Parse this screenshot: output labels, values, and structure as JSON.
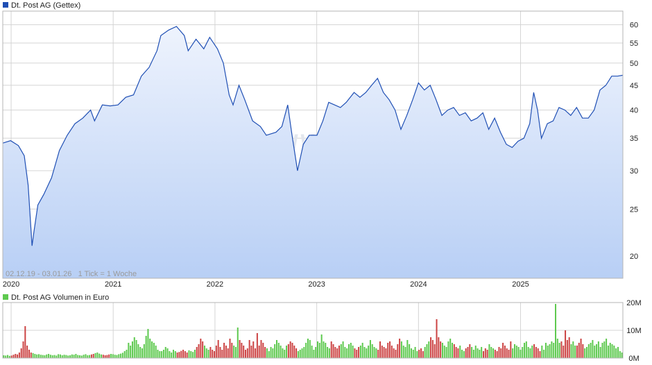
{
  "colors": {
    "line": "#1f4fb4",
    "area_top": "#eef3fd",
    "area_bottom": "#b8cff5",
    "grid": "#d4d4d4",
    "frame": "#b5b5b5",
    "vol_up": "#5ec94f",
    "vol_down": "#cc4444",
    "legend_price": "#1f4fb4",
    "legend_volume": "#5ec94f",
    "watermark": "#e3e7ee"
  },
  "chart_data": [
    {
      "type": "line",
      "title": "Dt. Post AG (Gettex)",
      "subtitle": "02.12.19 - 03.01.26   1 Tick = 1 Woche",
      "watermark": "ARIVA.DE",
      "scale": "log",
      "ylim": [
        18,
        64
      ],
      "grid": true,
      "y_ticks": [
        20,
        25,
        30,
        35,
        40,
        45,
        50,
        55,
        60
      ],
      "x_ticks": [
        "2020",
        "2021",
        "2022",
        "2023",
        "2024",
        "2025"
      ],
      "x_tick_dates": [
        "2020-01-01",
        "2021-01-01",
        "2022-01-01",
        "2023-01-01",
        "2024-01-01",
        "2025-01-01"
      ],
      "x_range": [
        "2019-12-02",
        "2026-01-03"
      ],
      "points": [
        [
          "2019-12-02",
          34.2
        ],
        [
          "2019-12-30",
          34.6
        ],
        [
          "2020-01-27",
          33.8
        ],
        [
          "2020-02-17",
          32.2
        ],
        [
          "2020-03-02",
          28.0
        ],
        [
          "2020-03-16",
          21.0
        ],
        [
          "2020-03-23",
          22.5
        ],
        [
          "2020-04-06",
          25.5
        ],
        [
          "2020-04-27",
          26.8
        ],
        [
          "2020-05-25",
          29.0
        ],
        [
          "2020-06-22",
          33.0
        ],
        [
          "2020-07-20",
          35.5
        ],
        [
          "2020-08-17",
          37.5
        ],
        [
          "2020-09-14",
          38.5
        ],
        [
          "2020-10-12",
          40.0
        ],
        [
          "2020-10-26",
          38.0
        ],
        [
          "2020-11-23",
          41.0
        ],
        [
          "2020-12-21",
          40.8
        ],
        [
          "2021-01-18",
          41.0
        ],
        [
          "2021-02-15",
          42.5
        ],
        [
          "2021-03-15",
          43.0
        ],
        [
          "2021-04-12",
          47.0
        ],
        [
          "2021-05-10",
          49.0
        ],
        [
          "2021-06-07",
          53.0
        ],
        [
          "2021-06-21",
          57.0
        ],
        [
          "2021-07-19",
          58.5
        ],
        [
          "2021-08-16",
          59.5
        ],
        [
          "2021-09-13",
          57.0
        ],
        [
          "2021-09-27",
          53.0
        ],
        [
          "2021-10-25",
          56.0
        ],
        [
          "2021-11-22",
          53.5
        ],
        [
          "2021-12-13",
          56.5
        ],
        [
          "2022-01-10",
          53.5
        ],
        [
          "2022-01-31",
          50.0
        ],
        [
          "2022-02-21",
          43.0
        ],
        [
          "2022-03-07",
          41.0
        ],
        [
          "2022-03-28",
          45.0
        ],
        [
          "2022-04-18",
          42.0
        ],
        [
          "2022-05-16",
          38.0
        ],
        [
          "2022-06-13",
          37.0
        ],
        [
          "2022-07-04",
          35.5
        ],
        [
          "2022-08-08",
          36.0
        ],
        [
          "2022-08-29",
          37.0
        ],
        [
          "2022-09-19",
          41.0
        ],
        [
          "2022-10-03",
          36.0
        ],
        [
          "2022-10-24",
          30.0
        ],
        [
          "2022-11-14",
          34.0
        ],
        [
          "2022-12-05",
          35.5
        ],
        [
          "2023-01-02",
          35.5
        ],
        [
          "2023-01-23",
          38.0
        ],
        [
          "2023-02-13",
          41.5
        ],
        [
          "2023-03-06",
          41.0
        ],
        [
          "2023-03-27",
          40.5
        ],
        [
          "2023-04-17",
          41.5
        ],
        [
          "2023-05-15",
          43.5
        ],
        [
          "2023-06-05",
          42.5
        ],
        [
          "2023-06-26",
          43.5
        ],
        [
          "2023-07-17",
          45.0
        ],
        [
          "2023-08-07",
          46.5
        ],
        [
          "2023-08-28",
          43.5
        ],
        [
          "2023-09-18",
          42.0
        ],
        [
          "2023-10-09",
          40.0
        ],
        [
          "2023-10-30",
          36.5
        ],
        [
          "2023-11-20",
          39.0
        ],
        [
          "2023-12-11",
          42.0
        ],
        [
          "2024-01-01",
          45.5
        ],
        [
          "2024-01-22",
          44.0
        ],
        [
          "2024-02-12",
          45.0
        ],
        [
          "2024-03-04",
          42.0
        ],
        [
          "2024-03-25",
          39.0
        ],
        [
          "2024-04-15",
          40.0
        ],
        [
          "2024-05-06",
          40.5
        ],
        [
          "2024-05-27",
          39.0
        ],
        [
          "2024-06-17",
          39.5
        ],
        [
          "2024-07-08",
          38.0
        ],
        [
          "2024-07-29",
          38.5
        ],
        [
          "2024-08-19",
          39.5
        ],
        [
          "2024-09-09",
          36.5
        ],
        [
          "2024-09-30",
          38.5
        ],
        [
          "2024-10-21",
          36.0
        ],
        [
          "2024-11-11",
          34.0
        ],
        [
          "2024-12-02",
          33.5
        ],
        [
          "2024-12-23",
          34.5
        ],
        [
          "2025-01-13",
          35.0
        ],
        [
          "2025-02-03",
          37.5
        ],
        [
          "2025-02-17",
          43.5
        ],
        [
          "2025-03-03",
          40.0
        ],
        [
          "2025-03-17",
          35.0
        ],
        [
          "2025-04-07",
          37.5
        ],
        [
          "2025-04-28",
          38.0
        ],
        [
          "2025-05-19",
          40.5
        ],
        [
          "2025-06-09",
          40.0
        ],
        [
          "2025-06-30",
          39.0
        ],
        [
          "2025-07-21",
          40.5
        ],
        [
          "2025-08-11",
          38.5
        ],
        [
          "2025-09-01",
          38.5
        ],
        [
          "2025-09-22",
          40.0
        ],
        [
          "2025-10-13",
          44.0
        ],
        [
          "2025-11-03",
          45.0
        ],
        [
          "2025-11-24",
          47.0
        ],
        [
          "2025-12-15",
          47.0
        ],
        [
          "2026-01-03",
          47.2
        ]
      ]
    },
    {
      "type": "bar",
      "title": "Dt. Post AG Volumen in Euro",
      "unit": "Euro",
      "ylim": [
        0,
        20000000
      ],
      "y_ticks": [
        0,
        10000000,
        20000000
      ],
      "y_tick_labels": [
        "0M",
        "10M",
        "20M"
      ],
      "x_range": [
        "2019-12-02",
        "2026-01-03"
      ],
      "x_ticks": [
        "2020",
        "2021",
        "2022",
        "2023",
        "2024",
        "2025"
      ],
      "values_millions": [
        1.0,
        0.9,
        1.1,
        0.8,
        0.9,
        1.2,
        1.5,
        1.3,
        2.0,
        3.5,
        6.0,
        11.5,
        4.5,
        3.0,
        2.0,
        1.8,
        1.5,
        1.3,
        1.4,
        1.2,
        1.1,
        1.0,
        1.3,
        1.5,
        1.2,
        1.0,
        1.1,
        0.9,
        1.4,
        1.3,
        1.0,
        1.2,
        1.1,
        0.9,
        1.0,
        1.3,
        1.2,
        1.5,
        1.1,
        1.0,
        0.9,
        1.2,
        1.4,
        1.0,
        1.1,
        1.3,
        1.5,
        1.8,
        2.0,
        1.6,
        1.3,
        1.2,
        1.0,
        1.1,
        1.3,
        1.5,
        1.4,
        1.2,
        1.1,
        1.4,
        1.6,
        1.9,
        2.5,
        3.0,
        5.5,
        4.5,
        6.0,
        7.5,
        6.5,
        5.0,
        4.0,
        3.5,
        5.0,
        8.0,
        10.5,
        7.0,
        6.0,
        5.5,
        4.5,
        3.0,
        2.5,
        2.5,
        3.0,
        4.0,
        3.5,
        2.5,
        2.0,
        3.0,
        2.5,
        2.0,
        2.2,
        2.6,
        3.0,
        2.5,
        2.0,
        2.8,
        2.5,
        2.2,
        3.0,
        4.0,
        5.0,
        7.0,
        6.0,
        4.5,
        3.5,
        3.0,
        4.0,
        3.0,
        2.5,
        4.5,
        6.5,
        4.0,
        3.0,
        5.5,
        4.5,
        3.5,
        7.0,
        5.5,
        4.5,
        4.0,
        11.0,
        6.5,
        5.5,
        4.5,
        3.0,
        3.5,
        6.5,
        4.5,
        6.0,
        3.5,
        9.0,
        4.5,
        6.5,
        5.5,
        4.0,
        3.5,
        2.5,
        4.0,
        3.5,
        5.0,
        6.5,
        5.5,
        4.5,
        3.5,
        3.0,
        4.5,
        5.0,
        6.0,
        5.5,
        4.5,
        3.5,
        2.5,
        3.0,
        3.5,
        4.0,
        5.5,
        7.0,
        6.5,
        4.5,
        3.0,
        4.0,
        6.0,
        5.5,
        8.5,
        6.0,
        5.5,
        4.0,
        3.5,
        6.0,
        5.0,
        4.0,
        3.5,
        4.5,
        5.0,
        6.0,
        4.0,
        3.5,
        5.0,
        5.5,
        4.5,
        3.5,
        3.0,
        4.0,
        4.5,
        5.5,
        4.0,
        3.5,
        4.5,
        6.5,
        5.0,
        4.0,
        3.5,
        3.0,
        6.0,
        4.5,
        4.0,
        3.5,
        5.5,
        6.0,
        4.5,
        3.5,
        3.0,
        5.0,
        7.0,
        6.0,
        4.5,
        4.0,
        6.5,
        5.0,
        3.5,
        3.0,
        4.0,
        2.5,
        3.0,
        3.5,
        2.5,
        4.0,
        5.0,
        6.0,
        7.5,
        6.5,
        5.0,
        14.0,
        7.5,
        6.0,
        5.5,
        4.5,
        4.0,
        6.0,
        7.0,
        5.5,
        5.0,
        4.0,
        3.5,
        4.5,
        3.0,
        2.5,
        3.5,
        4.0,
        5.0,
        4.0,
        3.0,
        4.5,
        3.5,
        3.0,
        4.0,
        2.5,
        3.5,
        3.0,
        5.0,
        4.0,
        3.5,
        3.0,
        2.5,
        4.0,
        3.5,
        5.5,
        4.5,
        3.5,
        3.0,
        6.0,
        3.5,
        5.0,
        4.5,
        4.0,
        3.0,
        4.0,
        5.5,
        6.0,
        4.0,
        3.5,
        4.5,
        5.0,
        4.0,
        3.5,
        2.5,
        4.5,
        3.0,
        5.5,
        4.5,
        5.0,
        6.0,
        5.5,
        19.5,
        7.0,
        5.5,
        6.0,
        4.5,
        10.0,
        6.5,
        7.5,
        5.0,
        6.0,
        4.5,
        4.5,
        5.5,
        7.0,
        5.0,
        3.5,
        4.0,
        5.0,
        5.5,
        6.5,
        4.5,
        5.0,
        6.0,
        4.0,
        5.5,
        6.0,
        7.0,
        4.5,
        5.5,
        5.0,
        4.5,
        3.5,
        4.0,
        2.5,
        2.0
      ]
    }
  ]
}
